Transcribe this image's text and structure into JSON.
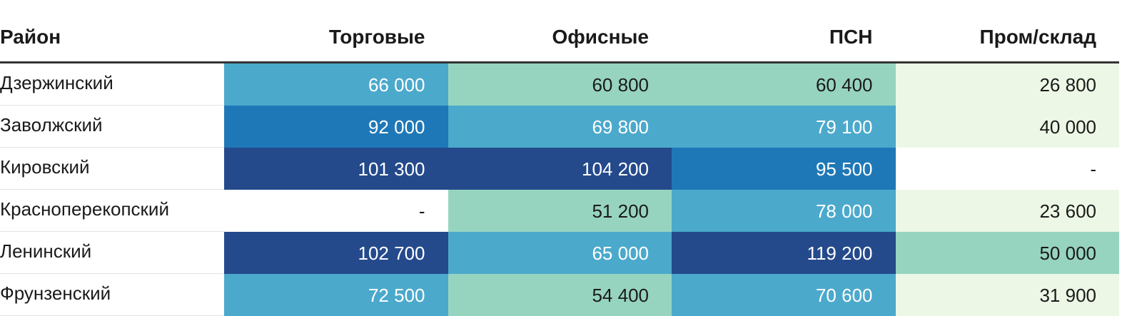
{
  "chart_data": {
    "type": "table",
    "columns": [
      "Район",
      "Торговые",
      "Офисные",
      "ПСН",
      "Пром/склад"
    ],
    "rows": [
      {
        "label": "Дзержинский",
        "values": [
          "66 000",
          "60 800",
          "60 400",
          "26 800"
        ],
        "numbers": [
          66000,
          60800,
          60400,
          26800
        ],
        "colors": [
          "#4ba9cc",
          "#97d4c0",
          "#97d4c0",
          "#edf7e6"
        ]
      },
      {
        "label": "Заволжский",
        "values": [
          "92 000",
          "69 800",
          "79 100",
          "40 000"
        ],
        "numbers": [
          92000,
          69800,
          79100,
          40000
        ],
        "colors": [
          "#1e78b7",
          "#4ba9cc",
          "#4ba9cc",
          "#edf7e6"
        ]
      },
      {
        "label": "Кировский",
        "values": [
          "101 300",
          "104 200",
          "95 500",
          "-"
        ],
        "numbers": [
          101300,
          104200,
          95500,
          null
        ],
        "colors": [
          "#244a8c",
          "#244a8c",
          "#1e78b7",
          "#ffffff"
        ]
      },
      {
        "label": "Краснoперекопский",
        "values": [
          "-",
          "51 200",
          "78 000",
          "23 600"
        ],
        "numbers": [
          null,
          51200,
          78000,
          23600
        ],
        "colors": [
          "#ffffff",
          "#97d4c0",
          "#4ba9cc",
          "#edf7e6"
        ]
      },
      {
        "label": "Ленинский",
        "values": [
          "102 700",
          "65 000",
          "119 200",
          "50 000"
        ],
        "numbers": [
          102700,
          65000,
          119200,
          50000
        ],
        "colors": [
          "#244a8c",
          "#4ba9cc",
          "#244a8c",
          "#97d4c0"
        ]
      },
      {
        "label": "Фрунзенский",
        "values": [
          "72 500",
          "54 400",
          "70 600",
          "31 900"
        ],
        "numbers": [
          72500,
          54400,
          70600,
          31900
        ],
        "colors": [
          "#4ba9cc",
          "#97d4c0",
          "#4ba9cc",
          "#edf7e6"
        ]
      }
    ],
    "text_colors": {
      "dark_fill": "#ffffff",
      "light_fill": "#1a1a1a"
    },
    "light_fills": [
      "#97d4c0",
      "#edf7e6",
      "#ffffff"
    ]
  }
}
